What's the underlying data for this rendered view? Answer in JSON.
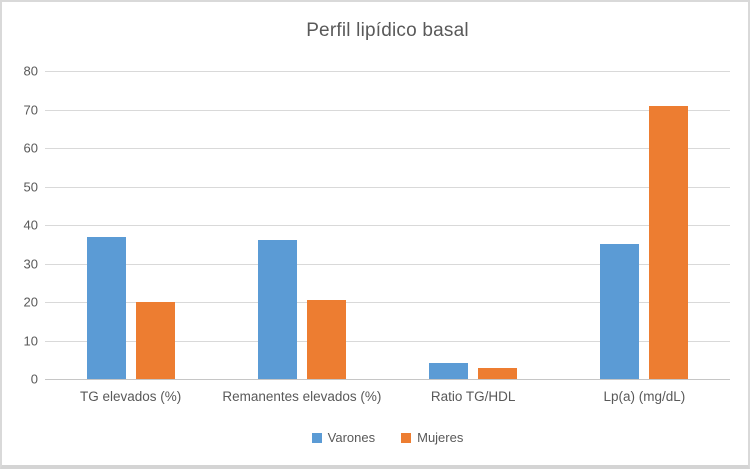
{
  "chart_data": {
    "type": "bar",
    "title": "Perfil lipídico basal",
    "categories": [
      "TG elevados (%)",
      "Remanentes elevados (%)",
      "Ratio TG/HDL",
      "Lp(a) (mg/dL)"
    ],
    "series": [
      {
        "name": "Varones",
        "color": "#5B9BD5",
        "values": [
          37,
          36,
          4.2,
          35
        ]
      },
      {
        "name": "Mujeres",
        "color": "#ED7D31",
        "values": [
          20,
          20.5,
          2.8,
          71
        ]
      }
    ],
    "xlabel": "",
    "ylabel": "",
    "ylim": [
      0,
      80
    ],
    "ytick_step": 10,
    "grid": true,
    "legend_position": "bottom"
  },
  "colors": {
    "text": "#595959",
    "gridline": "#D9D9D9",
    "axis_line": "#C6C6C6",
    "background": "#FFFFFF",
    "frame_border": "#D9D9D9"
  }
}
